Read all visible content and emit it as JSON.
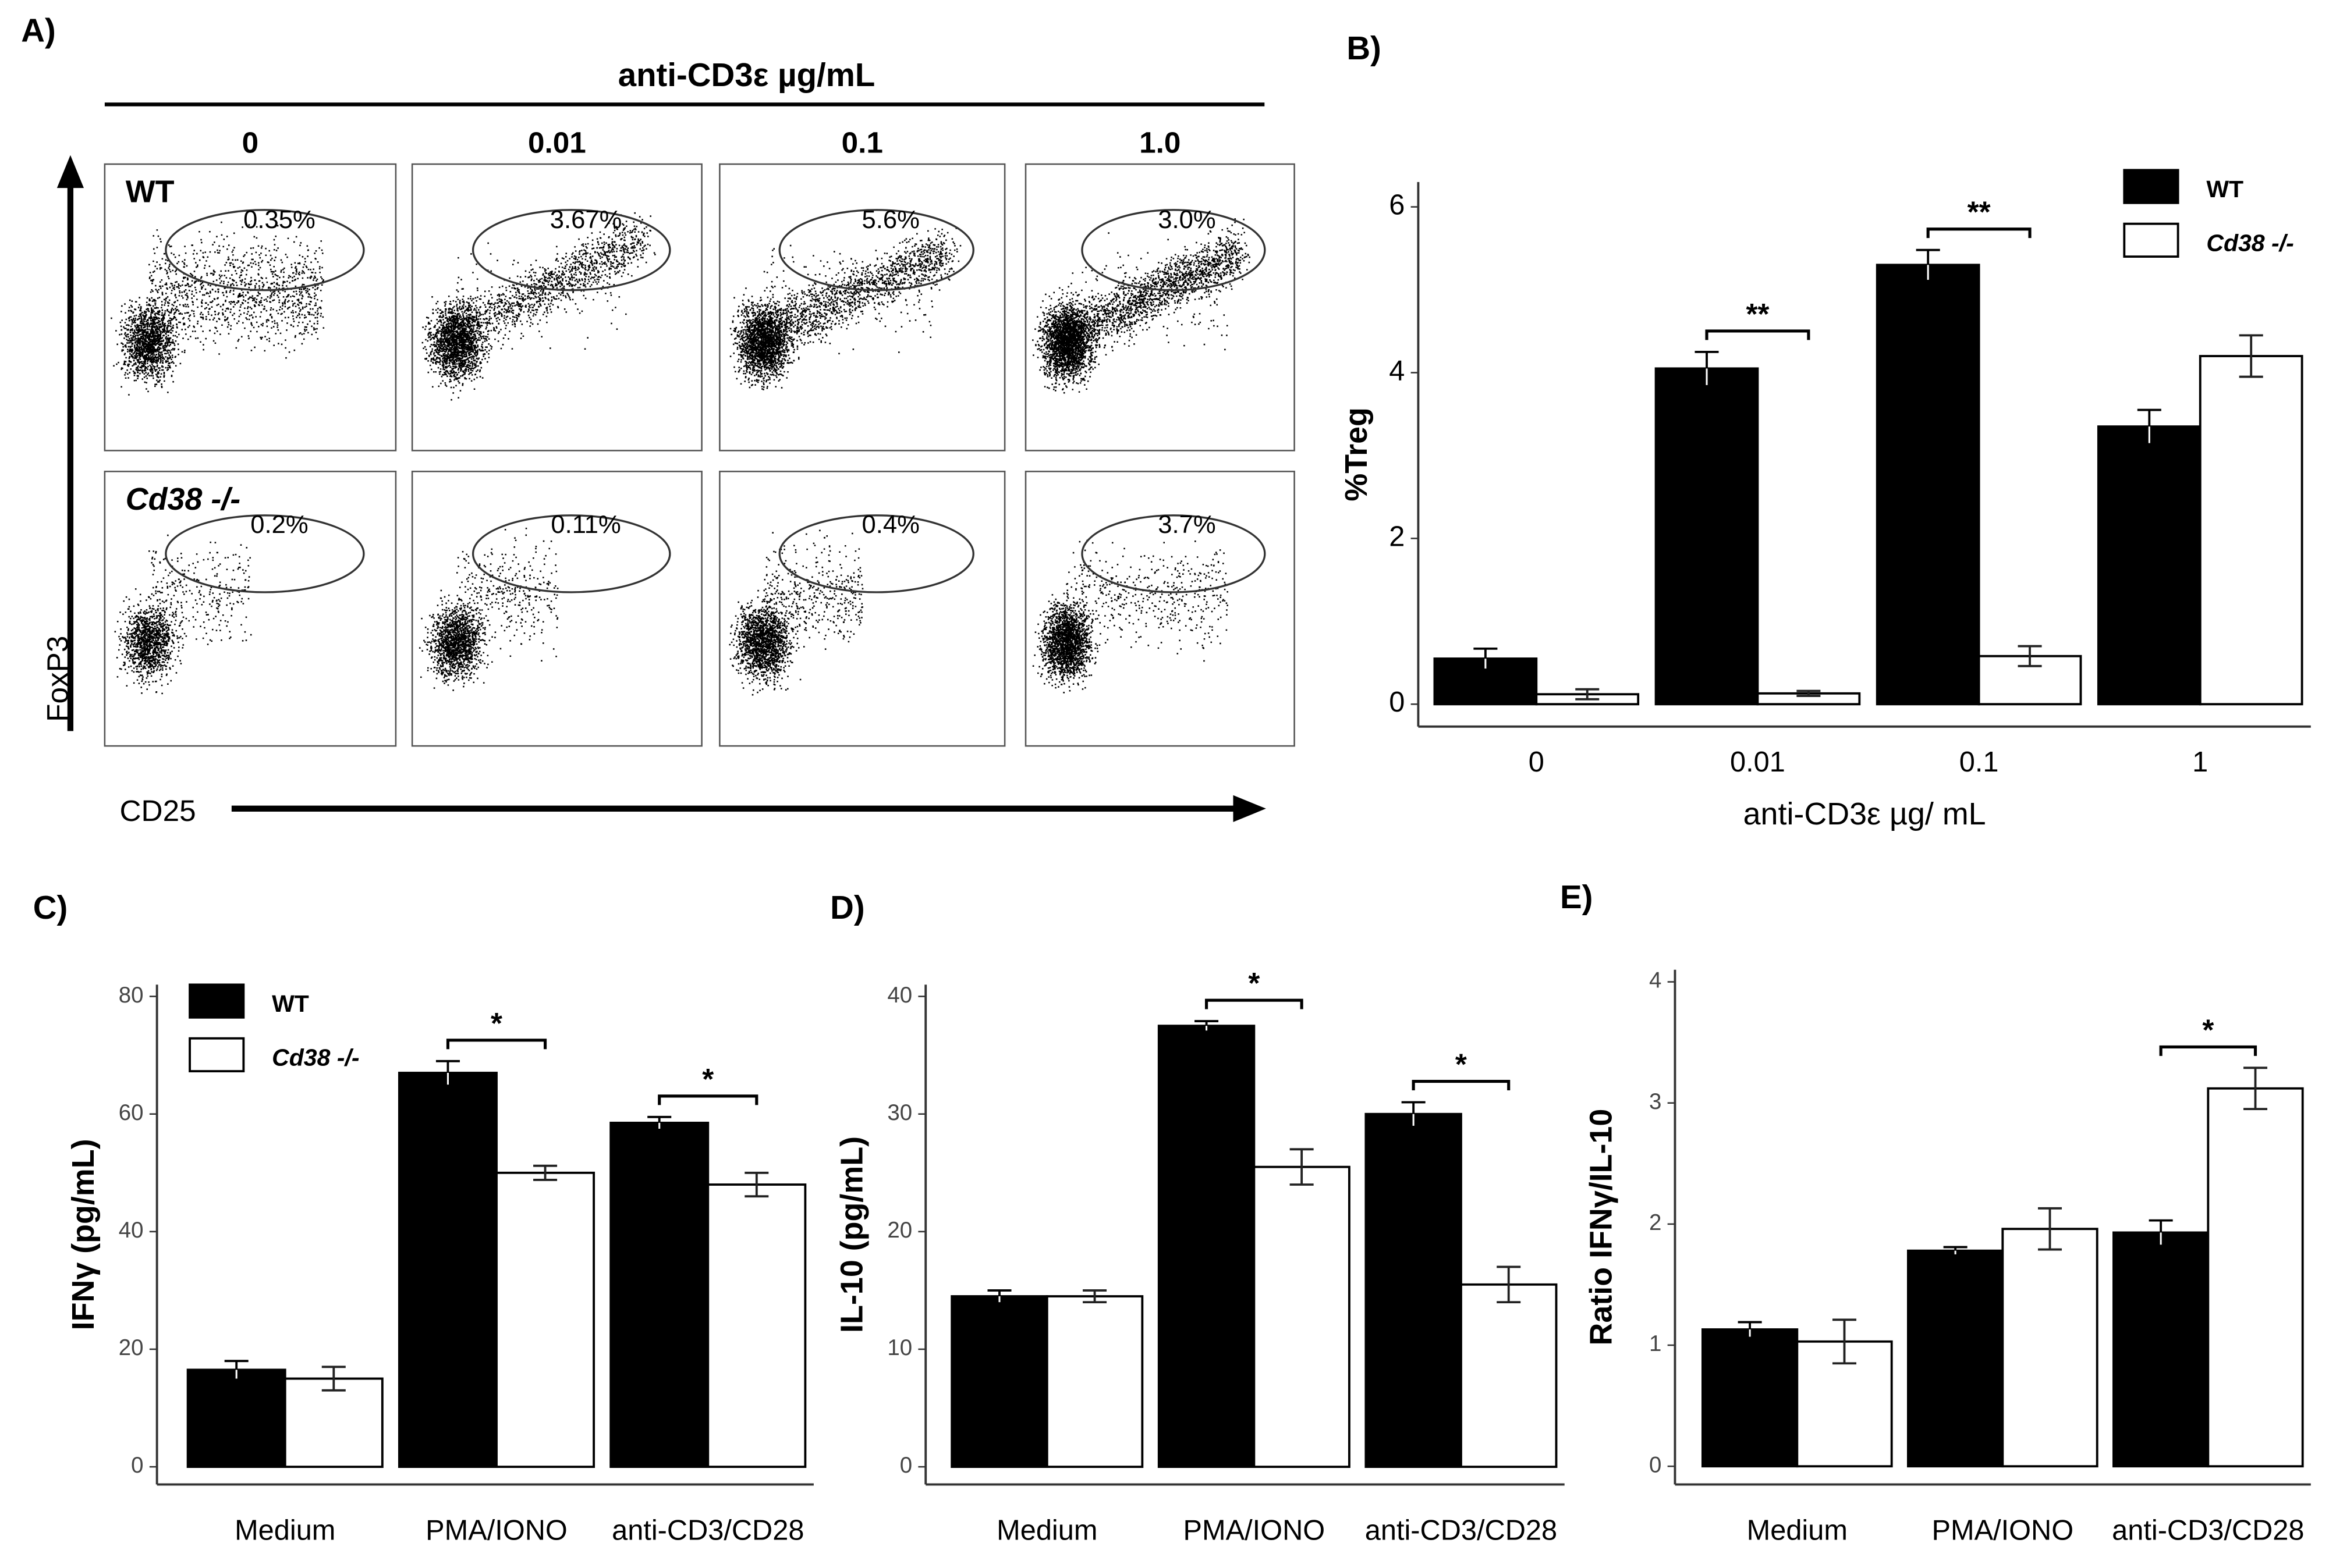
{
  "panel_labels": [
    "A)",
    "B)",
    "C)",
    "D)",
    "E)"
  ],
  "flow": {
    "header": "anti-CD3ε µg/mL",
    "columns": [
      "0",
      "0.01",
      "0.1",
      "1.0"
    ],
    "rows": [
      "WT",
      "Cd38 -/-"
    ],
    "gates": [
      [
        "0.35%",
        "3.67%",
        "5.6%",
        "3.0%"
      ],
      [
        "0.2%",
        "0.11%",
        "0.4%",
        "3.7%"
      ]
    ],
    "y_label": "FoxP3",
    "x_label": "CD25"
  },
  "chart_data": [
    {
      "type": "bar",
      "y_label": "%Treg",
      "x_label": "anti-CD3ε µg/ mL",
      "categories": [
        "0",
        "0.01",
        "0.1",
        "1"
      ],
      "series": [
        {
          "name": "WT",
          "color": "#000000",
          "values": [
            0.55,
            4.05,
            5.3,
            3.35
          ],
          "errors": [
            0.12,
            0.2,
            0.18,
            0.2
          ]
        },
        {
          "name": "Cd38 -/-",
          "color": "#ffffff",
          "values": [
            0.12,
            0.13,
            0.58,
            4.2
          ],
          "errors": [
            0.06,
            0.03,
            0.12,
            0.25
          ]
        }
      ],
      "ylim": [
        -0.27,
        6.3
      ],
      "yticks": [
        0,
        2,
        4,
        6
      ],
      "legend": "upper right",
      "annotations": [
        {
          "text": "**",
          "category": "0.01"
        },
        {
          "text": "**",
          "category": "0.1"
        }
      ]
    },
    {
      "type": "bar",
      "y_label": "IFNγ (pg/mL)",
      "categories": [
        "Medium",
        "PMA/IONO",
        "anti-CD3/CD28"
      ],
      "series": [
        {
          "name": "WT",
          "color": "#000000",
          "values": [
            16.5,
            67,
            58.5
          ],
          "errors": [
            1.5,
            2,
            1
          ]
        },
        {
          "name": "Cd38 -/-",
          "color": "#ffffff",
          "values": [
            15,
            50,
            48
          ],
          "errors": [
            2,
            1.2,
            2
          ]
        }
      ],
      "ylim": [
        -3,
        82
      ],
      "yticks": [
        0,
        20,
        40,
        60,
        80
      ],
      "legend": "upper left",
      "annotations": [
        {
          "text": "*",
          "category": "PMA/IONO"
        },
        {
          "text": "*",
          "category": "anti-CD3/CD28"
        }
      ]
    },
    {
      "type": "bar",
      "y_label": "IL-10 (pg/mL)",
      "categories": [
        "Medium",
        "PMA/IONO",
        "anti-CD3/CD28"
      ],
      "series": [
        {
          "name": "WT",
          "color": "#000000",
          "values": [
            14.5,
            37.5,
            30
          ],
          "errors": [
            0.5,
            0.4,
            1
          ]
        },
        {
          "name": "Cd38 -/-",
          "color": "#ffffff",
          "values": [
            14.5,
            25.5,
            15.5
          ],
          "errors": [
            0.5,
            1.5,
            1.5
          ]
        }
      ],
      "ylim": [
        -1.5,
        41
      ],
      "yticks": [
        0,
        10,
        20,
        30,
        40
      ],
      "annotations": [
        {
          "text": "*",
          "category": "PMA/IONO"
        },
        {
          "text": "*",
          "category": "anti-CD3/CD28"
        }
      ]
    },
    {
      "type": "bar",
      "y_label": "Ratio IFNγ/IL-10",
      "categories": [
        "Medium",
        "PMA/IONO",
        "anti-CD3/CD28"
      ],
      "series": [
        {
          "name": "WT",
          "color": "#000000",
          "values": [
            1.13,
            1.78,
            1.93
          ],
          "errors": [
            0.06,
            0.03,
            0.1
          ]
        },
        {
          "name": "Cd38 -/-",
          "color": "#ffffff",
          "values": [
            1.03,
            1.96,
            3.12
          ],
          "errors": [
            0.18,
            0.17,
            0.17
          ]
        }
      ],
      "ylim": [
        -0.15,
        4.1
      ],
      "yticks": [
        0,
        1,
        2,
        3,
        4
      ],
      "annotations": [
        {
          "text": "*",
          "category": "anti-CD3/CD28"
        }
      ]
    }
  ]
}
